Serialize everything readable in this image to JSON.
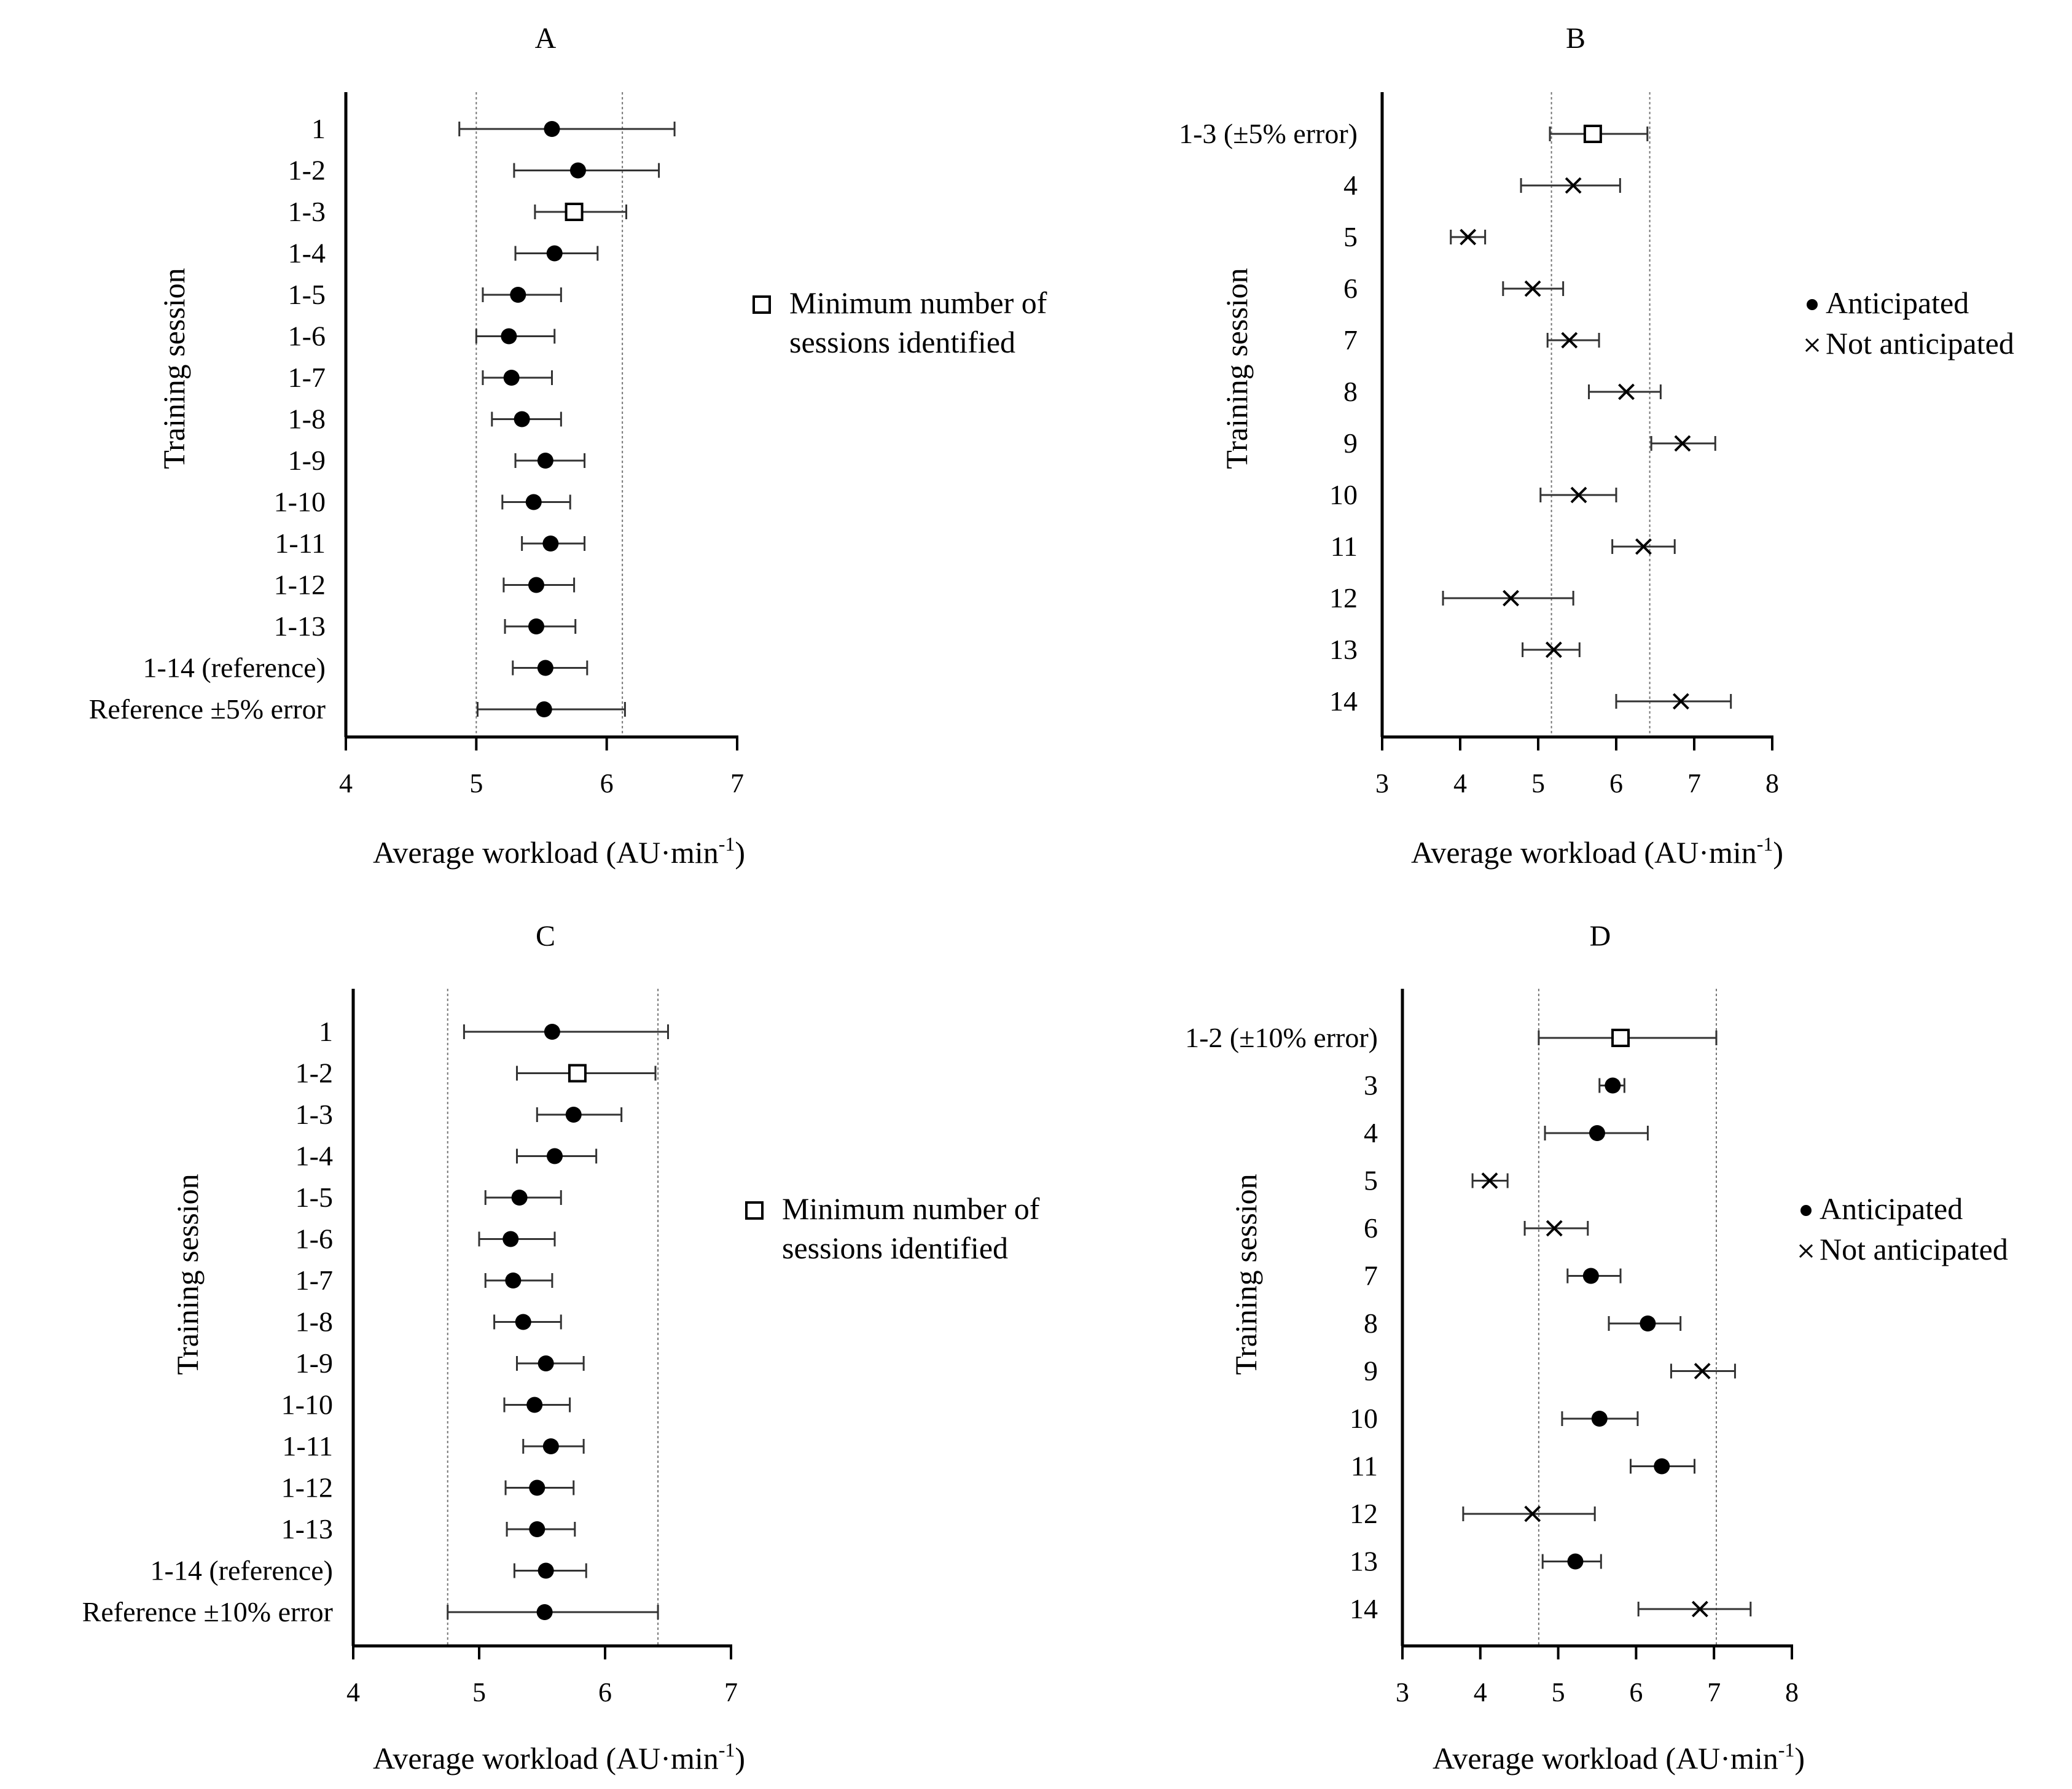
{
  "chart_data": [
    {
      "id": "A",
      "type": "forest",
      "title": "A",
      "xlabel": "Average workload (AU·min",
      "xlabel_sup": "-1",
      "xlabel_close": ")",
      "ylabel": "Training session",
      "xlim": [
        4,
        7
      ],
      "xticks": [
        "4",
        "5",
        "6",
        "7"
      ],
      "ref_lines": [
        5.0,
        6.12
      ],
      "rows": [
        {
          "label": "1",
          "mean": 5.58,
          "low": 4.87,
          "high": 6.52,
          "marker": "dot"
        },
        {
          "label": "1-2",
          "mean": 5.78,
          "low": 5.29,
          "high": 6.4,
          "marker": "dot"
        },
        {
          "label": "1-3",
          "mean": 5.75,
          "low": 5.45,
          "high": 6.15,
          "marker": "square"
        },
        {
          "label": "1-4",
          "mean": 5.6,
          "low": 5.3,
          "high": 5.93,
          "marker": "dot"
        },
        {
          "label": "1-5",
          "mean": 5.32,
          "low": 5.05,
          "high": 5.65,
          "marker": "dot"
        },
        {
          "label": "1-6",
          "mean": 5.25,
          "low": 5.0,
          "high": 5.6,
          "marker": "dot"
        },
        {
          "label": "1-7",
          "mean": 5.27,
          "low": 5.05,
          "high": 5.58,
          "marker": "dot"
        },
        {
          "label": "1-8",
          "mean": 5.35,
          "low": 5.12,
          "high": 5.65,
          "marker": "dot"
        },
        {
          "label": "1-9",
          "mean": 5.53,
          "low": 5.3,
          "high": 5.83,
          "marker": "dot"
        },
        {
          "label": "1-10",
          "mean": 5.44,
          "low": 5.2,
          "high": 5.72,
          "marker": "dot"
        },
        {
          "label": "1-11",
          "mean": 5.57,
          "low": 5.35,
          "high": 5.83,
          "marker": "dot"
        },
        {
          "label": "1-12",
          "mean": 5.46,
          "low": 5.21,
          "high": 5.75,
          "marker": "dot"
        },
        {
          "label": "1-13",
          "mean": 5.46,
          "low": 5.22,
          "high": 5.76,
          "marker": "dot"
        },
        {
          "label": "1-14 (reference)",
          "mean": 5.53,
          "low": 5.28,
          "high": 5.85,
          "marker": "dot"
        },
        {
          "label": "Reference ±5% error",
          "mean": 5.52,
          "low": 5.01,
          "high": 6.14,
          "marker": "dot"
        }
      ],
      "legend": [
        {
          "marker": "square",
          "lines": [
            "Minimum number of",
            "sessions identified"
          ]
        }
      ]
    },
    {
      "id": "B",
      "type": "forest",
      "title": "B",
      "xlabel": "Average workload (AU·min",
      "xlabel_sup": "-1",
      "xlabel_close": ")",
      "ylabel": "Training session",
      "xlim": [
        3,
        8
      ],
      "xticks": [
        "3",
        "4",
        "5",
        "6",
        "7",
        "8"
      ],
      "ref_lines": [
        5.17,
        6.43
      ],
      "rows": [
        {
          "label": "1-3 (±5% error)",
          "mean": 5.7,
          "low": 5.15,
          "high": 6.4,
          "marker": "square"
        },
        {
          "label": "4",
          "mean": 5.45,
          "low": 4.78,
          "high": 6.05,
          "marker": "cross"
        },
        {
          "label": "5",
          "mean": 4.1,
          "low": 3.88,
          "high": 4.32,
          "marker": "cross"
        },
        {
          "label": "6",
          "mean": 4.93,
          "low": 4.55,
          "high": 5.32,
          "marker": "cross"
        },
        {
          "label": "7",
          "mean": 5.4,
          "low": 5.12,
          "high": 5.78,
          "marker": "cross"
        },
        {
          "label": "8",
          "mean": 6.13,
          "low": 5.65,
          "high": 6.57,
          "marker": "cross"
        },
        {
          "label": "9",
          "mean": 6.85,
          "low": 6.45,
          "high": 7.27,
          "marker": "cross"
        },
        {
          "label": "10",
          "mean": 5.52,
          "low": 5.03,
          "high": 6.0,
          "marker": "cross"
        },
        {
          "label": "11",
          "mean": 6.35,
          "low": 5.95,
          "high": 6.75,
          "marker": "cross"
        },
        {
          "label": "12",
          "mean": 4.65,
          "low": 3.78,
          "high": 5.45,
          "marker": "cross"
        },
        {
          "label": "13",
          "mean": 5.2,
          "low": 4.8,
          "high": 5.53,
          "marker": "cross"
        },
        {
          "label": "14",
          "mean": 6.83,
          "low": 6.0,
          "high": 7.47,
          "marker": "cross"
        }
      ],
      "legend": [
        {
          "marker": "dot-small",
          "lines": [
            "Anticipated"
          ]
        },
        {
          "marker": "cross-small",
          "lines": [
            "Not anticipated"
          ]
        }
      ]
    },
    {
      "id": "C",
      "type": "forest",
      "title": "C",
      "xlabel": "Average workload (AU·min",
      "xlabel_sup": "-1",
      "xlabel_close": ")",
      "ylabel": "Training session",
      "xlim": [
        4,
        7
      ],
      "xticks": [
        "4",
        "5",
        "6",
        "7"
      ],
      "ref_lines": [
        4.75,
        6.42
      ],
      "rows": [
        {
          "label": "1",
          "mean": 5.58,
          "low": 4.88,
          "high": 6.5,
          "marker": "dot"
        },
        {
          "label": "1-2",
          "mean": 5.78,
          "low": 5.3,
          "high": 6.4,
          "marker": "square"
        },
        {
          "label": "1-3",
          "mean": 5.75,
          "low": 5.46,
          "high": 6.13,
          "marker": "dot"
        },
        {
          "label": "1-4",
          "mean": 5.6,
          "low": 5.3,
          "high": 5.93,
          "marker": "dot"
        },
        {
          "label": "1-5",
          "mean": 5.32,
          "low": 5.05,
          "high": 5.65,
          "marker": "dot"
        },
        {
          "label": "1-6",
          "mean": 5.25,
          "low": 5.0,
          "high": 5.6,
          "marker": "dot"
        },
        {
          "label": "1-7",
          "mean": 5.27,
          "low": 5.05,
          "high": 5.58,
          "marker": "dot"
        },
        {
          "label": "1-8",
          "mean": 5.35,
          "low": 5.12,
          "high": 5.65,
          "marker": "dot"
        },
        {
          "label": "1-9",
          "mean": 5.53,
          "low": 5.3,
          "high": 5.83,
          "marker": "dot"
        },
        {
          "label": "1-10",
          "mean": 5.44,
          "low": 5.2,
          "high": 5.72,
          "marker": "dot"
        },
        {
          "label": "1-11",
          "mean": 5.57,
          "low": 5.35,
          "high": 5.83,
          "marker": "dot"
        },
        {
          "label": "1-12",
          "mean": 5.46,
          "low": 5.21,
          "high": 5.75,
          "marker": "dot"
        },
        {
          "label": "1-13",
          "mean": 5.46,
          "low": 5.22,
          "high": 5.76,
          "marker": "dot"
        },
        {
          "label": "1-14 (reference)",
          "mean": 5.53,
          "low": 5.28,
          "high": 5.85,
          "marker": "dot"
        },
        {
          "label": "Reference ±10% error",
          "mean": 5.52,
          "low": 4.75,
          "high": 6.42,
          "marker": "dot"
        }
      ],
      "legend": [
        {
          "marker": "square",
          "lines": [
            "Minimum number of",
            "sessions identified"
          ]
        }
      ]
    },
    {
      "id": "D",
      "type": "forest",
      "title": "D",
      "xlabel": "Average workload (AU·min",
      "xlabel_sup": "-1",
      "xlabel_close": ")",
      "ylabel": "Training session",
      "xlim": [
        3,
        8
      ],
      "xticks": [
        "3",
        "4",
        "5",
        "6",
        "7",
        "8"
      ],
      "ref_lines": [
        4.75,
        7.03
      ],
      "rows": [
        {
          "label": "1-2 (±10% error)",
          "mean": 5.8,
          "low": 4.75,
          "high": 7.03,
          "marker": "square"
        },
        {
          "label": "3",
          "mean": 5.7,
          "low": 5.53,
          "high": 5.85,
          "marker": "dot"
        },
        {
          "label": "4",
          "mean": 5.5,
          "low": 4.83,
          "high": 6.15,
          "marker": "dot"
        },
        {
          "label": "5",
          "mean": 4.12,
          "low": 3.9,
          "high": 4.35,
          "marker": "cross"
        },
        {
          "label": "6",
          "mean": 4.95,
          "low": 4.57,
          "high": 5.38,
          "marker": "cross"
        },
        {
          "label": "7",
          "mean": 5.42,
          "low": 5.12,
          "high": 5.8,
          "marker": "dot"
        },
        {
          "label": "8",
          "mean": 6.15,
          "low": 5.65,
          "high": 6.57,
          "marker": "dot"
        },
        {
          "label": "9",
          "mean": 6.85,
          "low": 6.45,
          "high": 7.27,
          "marker": "cross"
        },
        {
          "label": "10",
          "mean": 5.53,
          "low": 5.05,
          "high": 6.02,
          "marker": "dot"
        },
        {
          "label": "11",
          "mean": 6.33,
          "low": 5.93,
          "high": 6.75,
          "marker": "dot"
        },
        {
          "label": "12",
          "mean": 4.67,
          "low": 3.78,
          "high": 5.47,
          "marker": "cross"
        },
        {
          "label": "13",
          "mean": 5.22,
          "low": 4.8,
          "high": 5.55,
          "marker": "dot"
        },
        {
          "label": "14",
          "mean": 6.82,
          "low": 6.03,
          "high": 7.47,
          "marker": "cross"
        }
      ],
      "legend": [
        {
          "marker": "dot-small",
          "lines": [
            "Anticipated"
          ]
        },
        {
          "marker": "cross-small",
          "lines": [
            "Not anticipated"
          ]
        }
      ]
    }
  ]
}
